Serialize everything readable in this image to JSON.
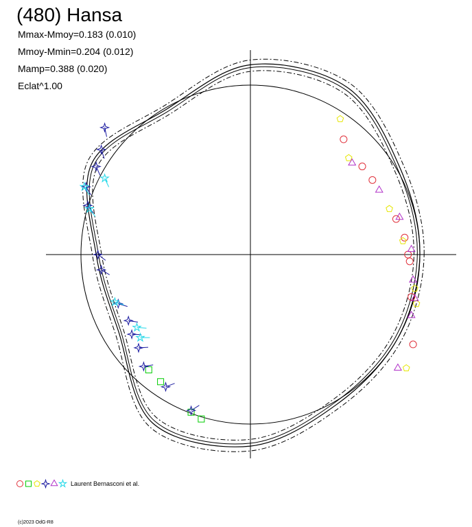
{
  "header": {
    "title": "(480) Hansa",
    "stats": [
      "Mmax-Mmoy=0.183 (0.010)",
      "Mmoy-Mmin=0.204 (0.012)",
      "Mamp=0.388 (0.020)",
      "Eclat^1.00"
    ]
  },
  "footer": {
    "author": "Laurent Bernasconi et al.",
    "copyright": "(c)2023 OdG-R8"
  },
  "colors": {
    "axes": "#000000",
    "fit_curve": "#000000",
    "circle": "#000000",
    "red": "#e0303a",
    "green": "#00cc00",
    "yellow": "#e6e600",
    "blue": "#1a1aa0",
    "magenta": "#b030c8",
    "cyan": "#20d8e8"
  },
  "chart_data": {
    "type": "scatter",
    "title": "(480) Hansa",
    "description_markers": [
      "circle",
      "square",
      "pentagon",
      "star4",
      "triangle",
      "star"
    ],
    "legend_placement": "bottom-left",
    "reference_circle": {
      "radius": 1.0
    },
    "curve_samples": [
      {
        "angle_deg": 0,
        "r": 1.0
      },
      {
        "angle_deg": 30,
        "r": 1.02
      },
      {
        "angle_deg": 60,
        "r": 1.14
      },
      {
        "angle_deg": 90,
        "r": 1.12
      },
      {
        "angle_deg": 120,
        "r": 0.99
      },
      {
        "angle_deg": 150,
        "r": 1.08
      },
      {
        "angle_deg": 180,
        "r": 0.91
      },
      {
        "angle_deg": 210,
        "r": 0.9
      },
      {
        "angle_deg": 240,
        "r": 1.15
      },
      {
        "angle_deg": 270,
        "r": 1.13
      },
      {
        "angle_deg": 300,
        "r": 1.02
      },
      {
        "angle_deg": 330,
        "r": 1.0
      }
    ],
    "series": [
      {
        "marker": "circle",
        "color": "red",
        "points": [
          [
            0.55,
            0.68
          ],
          [
            0.66,
            0.52
          ],
          [
            0.72,
            0.44
          ],
          [
            0.86,
            0.21
          ],
          [
            0.91,
            0.1
          ],
          [
            0.93,
            0.0
          ],
          [
            0.94,
            -0.04
          ],
          [
            0.95,
            -0.25
          ],
          [
            0.96,
            -0.53
          ]
        ]
      },
      {
        "marker": "square",
        "color": "green",
        "points": [
          [
            -0.6,
            -0.68
          ],
          [
            -0.53,
            -0.75
          ],
          [
            -0.35,
            -0.93
          ],
          [
            -0.29,
            -0.97
          ]
        ]
      },
      {
        "marker": "pentagon",
        "color": "yellow",
        "points": [
          [
            0.53,
            0.8
          ],
          [
            0.58,
            0.57
          ],
          [
            0.82,
            0.27
          ],
          [
            0.9,
            0.08
          ],
          [
            0.97,
            -0.2
          ],
          [
            0.98,
            -0.29
          ],
          [
            0.92,
            -0.67
          ]
        ]
      },
      {
        "marker": "star4",
        "color": "blue",
        "points": [
          [
            -0.86,
            0.75
          ],
          [
            -0.88,
            0.62
          ],
          [
            -0.91,
            0.52
          ],
          [
            -0.97,
            0.4
          ],
          [
            -0.96,
            0.29
          ],
          [
            -0.9,
            0.0
          ],
          [
            -0.88,
            -0.09
          ],
          [
            -0.78,
            -0.29
          ],
          [
            -0.72,
            -0.39
          ],
          [
            -0.7,
            -0.47
          ],
          [
            -0.66,
            -0.55
          ],
          [
            -0.63,
            -0.66
          ],
          [
            -0.5,
            -0.78
          ],
          [
            -0.35,
            -0.92
          ]
        ]
      },
      {
        "marker": "triangle",
        "color": "magenta",
        "points": [
          [
            0.6,
            0.54
          ],
          [
            0.76,
            0.38
          ],
          [
            0.88,
            0.22
          ],
          [
            0.95,
            0.03
          ],
          [
            0.96,
            -0.15
          ],
          [
            0.97,
            -0.26
          ],
          [
            0.95,
            -0.36
          ],
          [
            0.87,
            -0.67
          ]
        ]
      },
      {
        "marker": "star",
        "color": "cyan",
        "points": [
          [
            -0.86,
            0.45
          ],
          [
            -0.98,
            0.4
          ],
          [
            -0.95,
            0.27
          ],
          [
            -0.8,
            -0.28
          ],
          [
            -0.67,
            -0.43
          ],
          [
            -0.65,
            -0.49
          ]
        ]
      }
    ]
  }
}
